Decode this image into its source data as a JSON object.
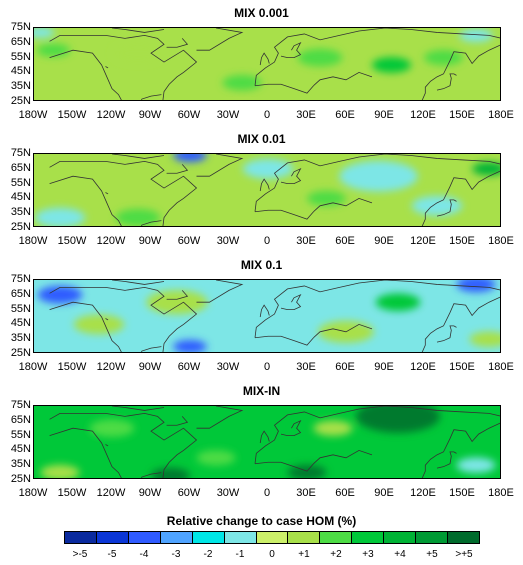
{
  "panels": [
    {
      "title": "MIX 0.001",
      "base": "#a8e04a",
      "blobs": [
        {
          "lon": -165,
          "lat": 60,
          "r": 12,
          "c": "#4ddc45"
        },
        {
          "lon": -100,
          "lat": 58,
          "r": 18,
          "c": "#a8e04a"
        },
        {
          "lon": -20,
          "lat": 38,
          "r": 14,
          "c": "#4ddc45"
        },
        {
          "lon": 40,
          "lat": 55,
          "r": 16,
          "c": "#4ddc45"
        },
        {
          "lon": 95,
          "lat": 50,
          "r": 14,
          "c": "#00c839"
        },
        {
          "lon": 135,
          "lat": 55,
          "r": 14,
          "c": "#4ddc45"
        },
        {
          "lon": 160,
          "lat": 70,
          "r": 12,
          "c": "#7de6e6"
        },
        {
          "lon": -175,
          "lat": 72,
          "r": 10,
          "c": "#7de6e6"
        }
      ]
    },
    {
      "title": "MIX 0.01",
      "base": "#a8e04a",
      "blobs": [
        {
          "lon": -160,
          "lat": 32,
          "r": 18,
          "c": "#7de6e6"
        },
        {
          "lon": 0,
          "lat": 65,
          "r": 18,
          "c": "#7de6e6"
        },
        {
          "lon": 85,
          "lat": 60,
          "r": 28,
          "c": "#7de6e6"
        },
        {
          "lon": 130,
          "lat": 40,
          "r": 18,
          "c": "#7de6e6"
        },
        {
          "lon": 170,
          "lat": 65,
          "r": 12,
          "c": "#00b335"
        },
        {
          "lon": -60,
          "lat": 74,
          "r": 12,
          "c": "#2f5bff"
        },
        {
          "lon": -100,
          "lat": 32,
          "r": 16,
          "c": "#4ddc45"
        },
        {
          "lon": 45,
          "lat": 45,
          "r": 14,
          "c": "#4ddc45"
        }
      ]
    },
    {
      "title": "MIX 0.1",
      "base": "#7de6e6",
      "blobs": [
        {
          "lon": -160,
          "lat": 65,
          "r": 16,
          "c": "#2f5bff"
        },
        {
          "lon": -130,
          "lat": 45,
          "r": 18,
          "c": "#a8e04a"
        },
        {
          "lon": -70,
          "lat": 60,
          "r": 22,
          "c": "#a8e04a"
        },
        {
          "lon": -60,
          "lat": 30,
          "r": 12,
          "c": "#2f5bff"
        },
        {
          "lon": 60,
          "lat": 40,
          "r": 20,
          "c": "#a8e04a"
        },
        {
          "lon": 100,
          "lat": 60,
          "r": 16,
          "c": "#00c839"
        },
        {
          "lon": 160,
          "lat": 72,
          "r": 14,
          "c": "#2f5bff"
        },
        {
          "lon": 170,
          "lat": 35,
          "r": 14,
          "c": "#a8e04a"
        }
      ]
    },
    {
      "title": "MIX-IN",
      "base": "#00c839",
      "blobs": [
        {
          "lon": 100,
          "lat": 68,
          "r": 30,
          "c": "#007a2e"
        },
        {
          "lon": -120,
          "lat": 60,
          "r": 16,
          "c": "#4ddc45"
        },
        {
          "lon": -40,
          "lat": 40,
          "r": 14,
          "c": "#4ddc45"
        },
        {
          "lon": -75,
          "lat": 28,
          "r": 14,
          "c": "#007a2e"
        },
        {
          "lon": -160,
          "lat": 30,
          "r": 14,
          "c": "#a8e04a"
        },
        {
          "lon": 30,
          "lat": 30,
          "r": 14,
          "c": "#007a2e"
        },
        {
          "lon": 160,
          "lat": 35,
          "r": 14,
          "c": "#7de6e6"
        },
        {
          "lon": 50,
          "lat": 60,
          "r": 14,
          "c": "#a8e04a"
        }
      ]
    }
  ],
  "lat_labels": [
    "75N",
    "65N",
    "55N",
    "45N",
    "35N",
    "25N"
  ],
  "lon_labels": [
    "180W",
    "150W",
    "120W",
    "90W",
    "60W",
    "30W",
    "0",
    "30E",
    "60E",
    "90E",
    "120E",
    "150E",
    "180E"
  ],
  "colorbar": {
    "title": "Relative change to case HOM (%)",
    "labels": [
      ">-5",
      "-5",
      "-4",
      "-3",
      "-2",
      "-1",
      "0",
      "+1",
      "+2",
      "+3",
      "+4",
      "+5",
      ">+5"
    ],
    "colors": [
      "#0a2a9e",
      "#0b36d6",
      "#2f5bff",
      "#4fa3ff",
      "#00e6e6",
      "#7de6e6",
      "#ccf06a",
      "#a8e04a",
      "#4ddc45",
      "#00c839",
      "#00b335",
      "#009a34",
      "#006b2c"
    ]
  }
}
